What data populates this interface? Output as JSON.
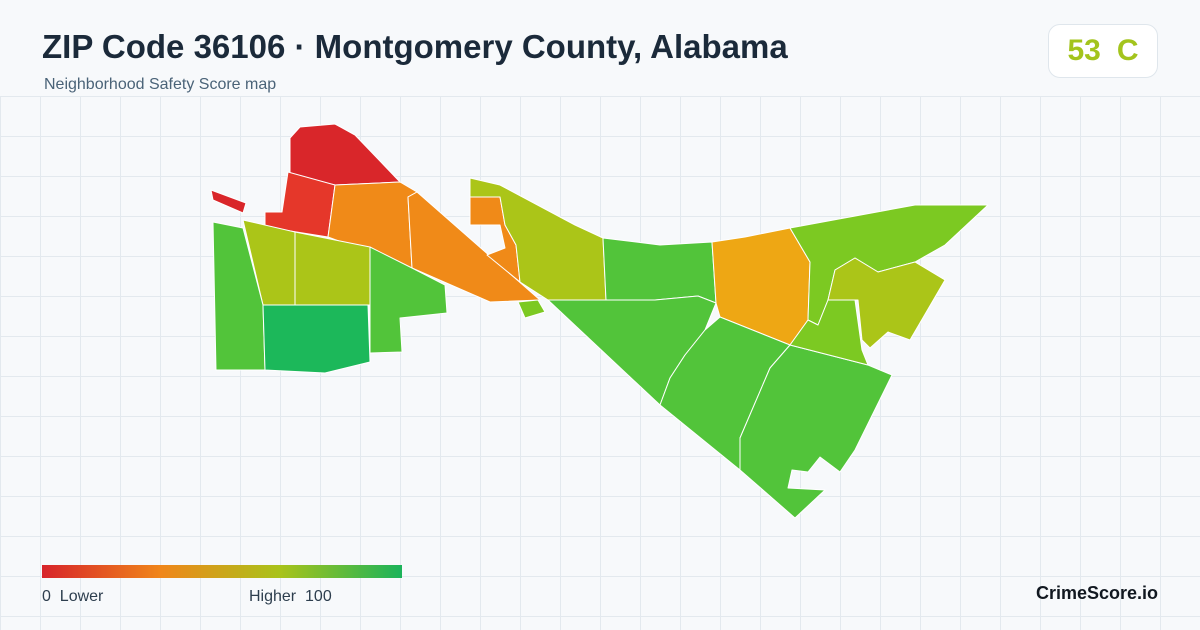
{
  "header": {
    "title": "ZIP Code 36106 · Montgomery County, Alabama",
    "subtitle": "Neighborhood Safety Score map"
  },
  "score": {
    "value": "53",
    "grade": "C",
    "color": "#a3c41d"
  },
  "legend": {
    "low_label": "0  Lower",
    "high_label": "Higher  100",
    "colors": [
      "#d7242a",
      "#f0861a",
      "#a9c31a",
      "#1bb35a"
    ]
  },
  "map": {
    "region_colors": {
      "lowest": "#d9262a",
      "low": "#e5372a",
      "low_mid": "#f08a18",
      "mid": "#eea714",
      "mid_high": "#abc518",
      "high": "#7cc922",
      "higher": "#52c43a",
      "highest": "#1cb85a"
    }
  },
  "brand": {
    "name": "CrimeScore.io"
  }
}
